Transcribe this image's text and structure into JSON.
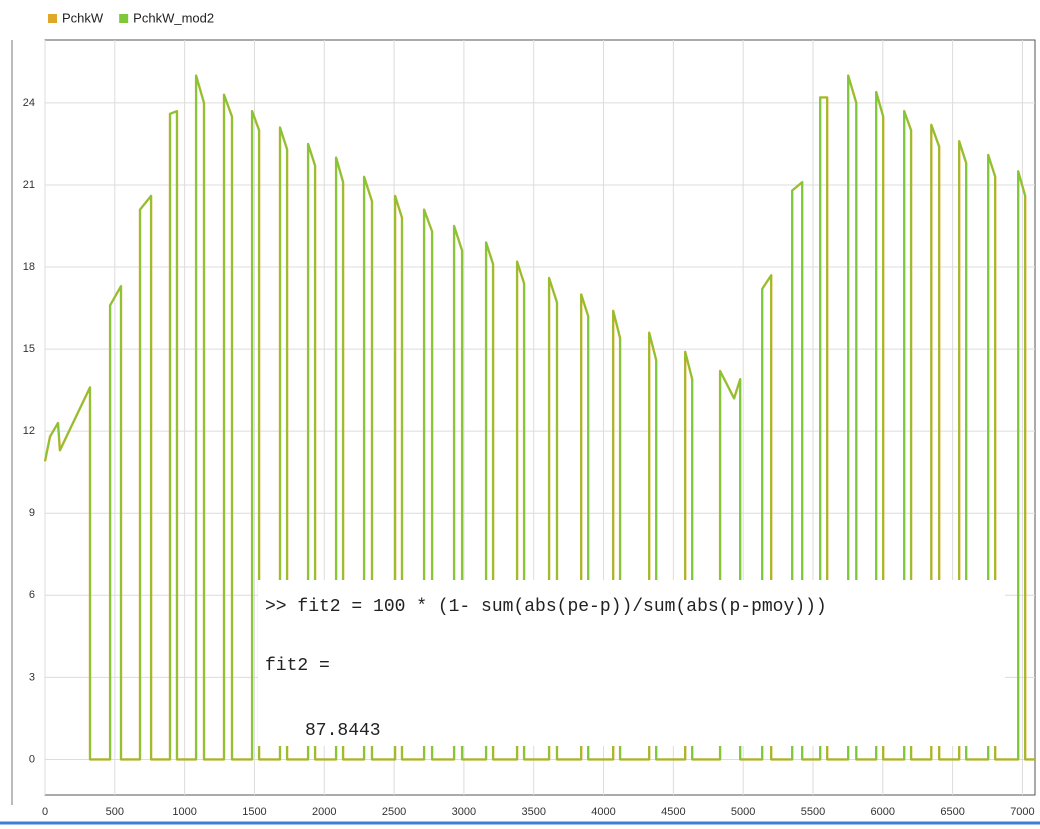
{
  "chart_data": {
    "type": "line",
    "x": [
      0,
      36,
      93,
      107,
      322,
      322,
      466,
      466,
      544,
      544,
      680,
      680,
      760,
      760,
      895,
      895,
      945,
      945,
      1082,
      1082,
      1139,
      1139,
      1282,
      1282,
      1339,
      1339,
      1483,
      1483,
      1533,
      1533,
      1683,
      1683,
      1734,
      1734,
      1884,
      1884,
      1934,
      1934,
      2085,
      2085,
      2135,
      2135,
      2285,
      2285,
      2342,
      2342,
      2507,
      2507,
      2557,
      2557,
      2715,
      2715,
      2772,
      2772,
      2930,
      2930,
      2987,
      2987,
      3159,
      3159,
      3209,
      3209,
      3381,
      3381,
      3431,
      3431,
      3610,
      3610,
      3667,
      3667,
      3840,
      3840,
      3890,
      3890,
      4069,
      4069,
      4119,
      4119,
      4327,
      4327,
      4377,
      4377,
      4585,
      4585,
      4635,
      4635,
      4835,
      4835,
      4935,
      4979,
      4979,
      5136,
      5136,
      5201,
      5201,
      5351,
      5351,
      5423,
      5423,
      5552,
      5552,
      5602,
      5602,
      5752,
      5752,
      5810,
      5810,
      5953,
      5953,
      6003,
      6003,
      6153,
      6153,
      6203,
      6203,
      6347,
      6347,
      6404,
      6404,
      6547,
      6547,
      6597,
      6597,
      6755,
      6755,
      6805,
      6805,
      6970,
      6970,
      7020,
      7020,
      7090
    ],
    "series": [
      {
        "name": "PchkW",
        "color": "#e0a828",
        "values": [
          10.9,
          11.8,
          12.3,
          11.3,
          13.6,
          0,
          0,
          16.6,
          17.3,
          0,
          0,
          20.1,
          20.6,
          0,
          0,
          23.6,
          23.7,
          0,
          0,
          25,
          24,
          0,
          0,
          24.3,
          23.5,
          0,
          0,
          23.7,
          23,
          0,
          0,
          23.1,
          22.3,
          0,
          0,
          22.5,
          21.7,
          0,
          0,
          22,
          21.1,
          0,
          0,
          21.3,
          20.4,
          0,
          0,
          20.6,
          19.8,
          0,
          0,
          20.1,
          19.3,
          0,
          0,
          19.5,
          18.6,
          0,
          0,
          18.9,
          18.1,
          0,
          0,
          18.2,
          17.4,
          0,
          0,
          17.6,
          16.7,
          0,
          0,
          17,
          16.2,
          0,
          0,
          16.4,
          15.4,
          0,
          0,
          15.6,
          14.6,
          0,
          0,
          14.9,
          13.9,
          0,
          0,
          14.2,
          13.2,
          13.9,
          0,
          0,
          17.2,
          17.7,
          0,
          0,
          20.8,
          21.1,
          0,
          0,
          24.2,
          24.2,
          0,
          0,
          25,
          24,
          0,
          0,
          24.4,
          23.5,
          0,
          0,
          23.7,
          23,
          0,
          0,
          23.2,
          22.4,
          0,
          0,
          22.6,
          21.8,
          0,
          0,
          22.1,
          21.3,
          0,
          0,
          21.5,
          20.6,
          0,
          0
        ]
      },
      {
        "name": "PchkW_mod2",
        "color": "#7cc83a",
        "values": [
          10.9,
          11.8,
          12.3,
          11.3,
          13.6,
          0,
          0,
          16.6,
          17.3,
          0,
          0,
          20.1,
          20.6,
          0,
          0,
          23.6,
          23.7,
          0,
          0,
          25,
          24,
          0,
          0,
          24.3,
          23.5,
          0,
          0,
          23.7,
          23,
          0,
          0,
          23.1,
          22.3,
          0,
          0,
          22.5,
          21.7,
          0,
          0,
          22,
          21.1,
          0,
          0,
          21.3,
          20.4,
          0,
          0,
          20.6,
          19.8,
          0,
          0,
          20.1,
          19.3,
          0,
          0,
          19.5,
          18.6,
          0,
          0,
          18.9,
          18.1,
          0,
          0,
          18.2,
          17.4,
          0,
          0,
          17.6,
          16.7,
          0,
          0,
          17,
          16.2,
          0,
          0,
          16.4,
          15.4,
          0,
          0,
          15.6,
          14.6,
          0,
          0,
          14.9,
          13.9,
          0,
          0,
          14.2,
          13.2,
          13.9,
          0,
          0,
          17.2,
          17.7,
          0,
          0,
          20.8,
          21.1,
          0,
          0,
          24.2,
          24.2,
          0,
          0,
          25,
          24,
          0,
          0,
          24.4,
          23.5,
          0,
          0,
          23.7,
          23,
          0,
          0,
          23.2,
          22.4,
          0,
          0,
          22.6,
          21.8,
          0,
          0,
          22.1,
          21.3,
          0,
          0,
          21.5,
          20.6,
          0,
          0
        ]
      }
    ],
    "xlim": [
      0,
      7090
    ],
    "ylim": [
      -1.3,
      26.3
    ],
    "xticks": [
      0,
      500,
      1000,
      1500,
      2000,
      2500,
      3000,
      3500,
      4000,
      4500,
      5000,
      5500,
      6000,
      6500,
      7000
    ],
    "yticks": [
      0,
      3,
      6,
      9,
      12,
      15,
      18,
      21,
      24
    ],
    "grid": true,
    "legend": "top-left"
  },
  "console": {
    "command": ">> fit2 = 100 * (1- sum(abs(pe-p))/sum(abs(p-pmoy)))",
    "output_label": "fit2 =",
    "output_value": "87.8443"
  }
}
